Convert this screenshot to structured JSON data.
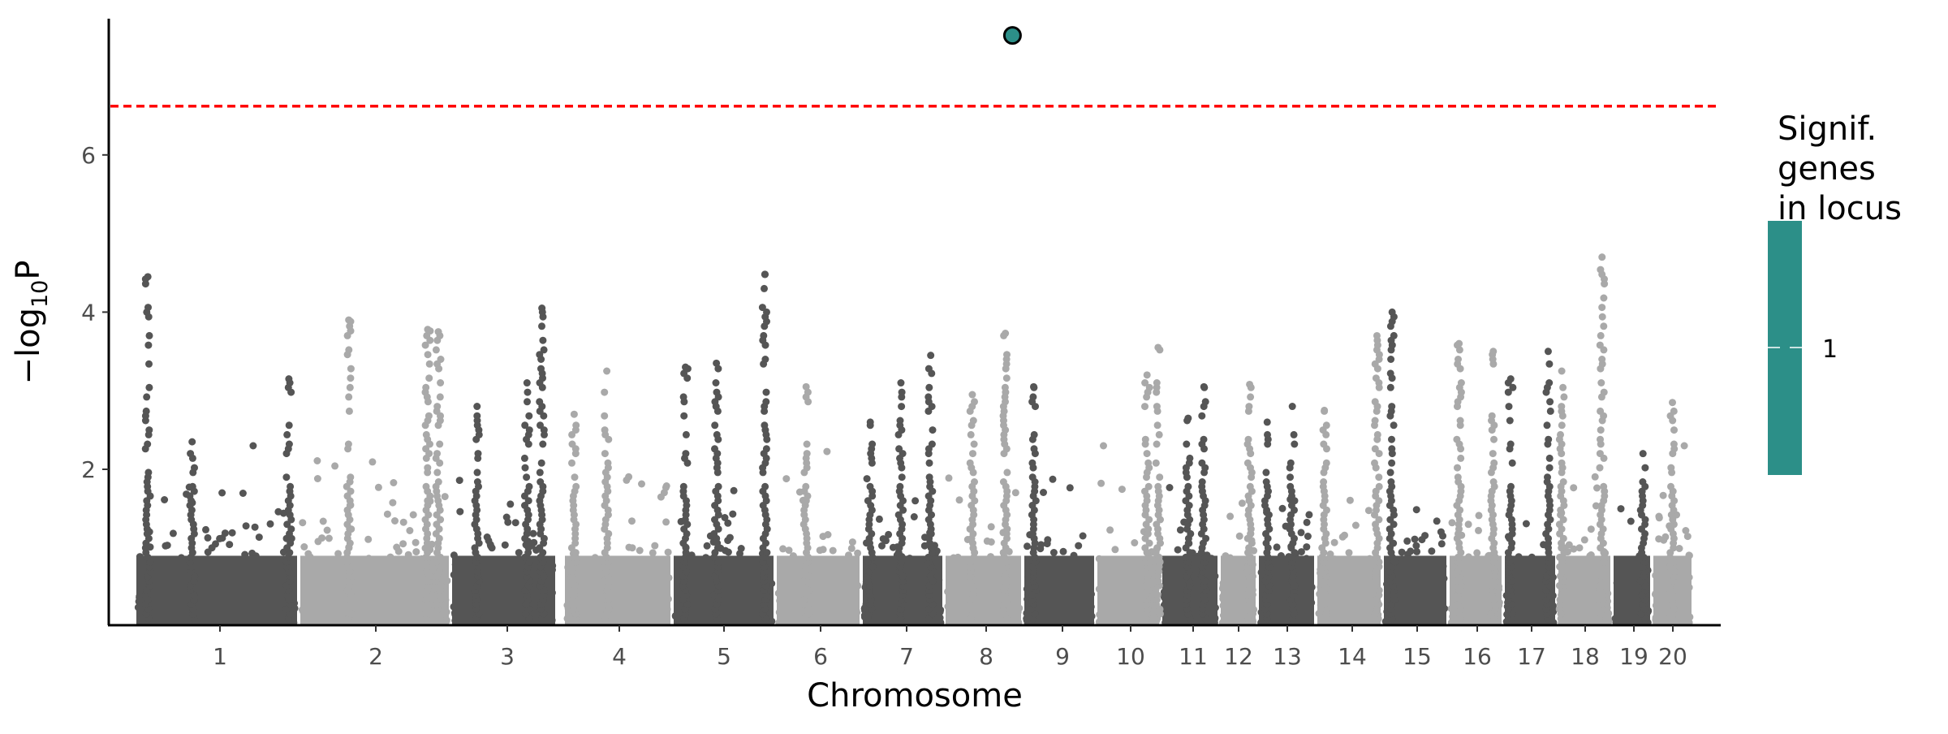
{
  "chart_data": {
    "type": "scatter",
    "subtype": "manhattan",
    "title": "",
    "xlabel": "Chromosome",
    "ylabel": "−log10P",
    "ylabel_main": "−log",
    "ylabel_sub": "10",
    "ylabel_tail": "P",
    "y_ticks": [
      2,
      4,
      6
    ],
    "ylim": [
      0.03,
      7.75
    ],
    "grid": false,
    "chromosomes": [
      "1",
      "2",
      "3",
      "4",
      "5",
      "6",
      "7",
      "8",
      "9",
      "10",
      "11",
      "12",
      "13",
      "14",
      "15",
      "16",
      "17",
      "18",
      "19",
      "20"
    ],
    "point_colors": [
      "#555555",
      "#a9a9a9"
    ],
    "significance_threshold": 6.62,
    "threshold_color": "#ff0000",
    "highlighted_point": {
      "chromosome": "8",
      "relative_position": 0.87,
      "neglog10p": 7.52,
      "signif_genes_in_locus": 1,
      "color": "#2c8f88"
    },
    "peaks": [
      {
        "chromosome": "1",
        "relative_position": 0.08,
        "neglog10p": 4.45
      },
      {
        "chromosome": "1",
        "relative_position": 0.94,
        "neglog10p": 3.15
      },
      {
        "chromosome": "1",
        "relative_position": 0.35,
        "neglog10p": 2.35
      },
      {
        "chromosome": "2",
        "relative_position": 0.33,
        "neglog10p": 3.9
      },
      {
        "chromosome": "2",
        "relative_position": 0.85,
        "neglog10p": 3.78
      },
      {
        "chromosome": "2",
        "relative_position": 0.92,
        "neglog10p": 3.75
      },
      {
        "chromosome": "3",
        "relative_position": 0.86,
        "neglog10p": 4.05
      },
      {
        "chromosome": "3",
        "relative_position": 0.72,
        "neglog10p": 3.1
      },
      {
        "chromosome": "3",
        "relative_position": 0.25,
        "neglog10p": 2.8
      },
      {
        "chromosome": "4",
        "relative_position": 0.4,
        "neglog10p": 3.25
      },
      {
        "chromosome": "4",
        "relative_position": 0.1,
        "neglog10p": 2.7
      },
      {
        "chromosome": "5",
        "relative_position": 0.13,
        "neglog10p": 3.3
      },
      {
        "chromosome": "5",
        "relative_position": 0.43,
        "neglog10p": 3.35
      },
      {
        "chromosome": "5",
        "relative_position": 0.9,
        "neglog10p": 4.48
      },
      {
        "chromosome": "6",
        "relative_position": 0.36,
        "neglog10p": 3.05
      },
      {
        "chromosome": "7",
        "relative_position": 0.11,
        "neglog10p": 2.6
      },
      {
        "chromosome": "7",
        "relative_position": 0.48,
        "neglog10p": 3.1
      },
      {
        "chromosome": "7",
        "relative_position": 0.84,
        "neglog10p": 3.45
      },
      {
        "chromosome": "8",
        "relative_position": 0.78,
        "neglog10p": 3.73
      },
      {
        "chromosome": "8",
        "relative_position": 0.36,
        "neglog10p": 2.95
      },
      {
        "chromosome": "9",
        "relative_position": 0.15,
        "neglog10p": 3.05
      },
      {
        "chromosome": "10",
        "relative_position": 0.96,
        "neglog10p": 3.55
      },
      {
        "chromosome": "10",
        "relative_position": 0.79,
        "neglog10p": 3.2
      },
      {
        "chromosome": "11",
        "relative_position": 0.74,
        "neglog10p": 3.05
      },
      {
        "chromosome": "11",
        "relative_position": 0.47,
        "neglog10p": 2.65
      },
      {
        "chromosome": "12",
        "relative_position": 0.8,
        "neglog10p": 3.08
      },
      {
        "chromosome": "13",
        "relative_position": 0.6,
        "neglog10p": 2.8
      },
      {
        "chromosome": "13",
        "relative_position": 0.17,
        "neglog10p": 2.6
      },
      {
        "chromosome": "14",
        "relative_position": 0.13,
        "neglog10p": 2.75
      },
      {
        "chromosome": "14",
        "relative_position": 0.92,
        "neglog10p": 3.7
      },
      {
        "chromosome": "15",
        "relative_position": 0.15,
        "neglog10p": 4.0
      },
      {
        "chromosome": "16",
        "relative_position": 0.2,
        "neglog10p": 3.6
      },
      {
        "chromosome": "16",
        "relative_position": 0.82,
        "neglog10p": 3.5
      },
      {
        "chromosome": "17",
        "relative_position": 0.14,
        "neglog10p": 3.15
      },
      {
        "chromosome": "17",
        "relative_position": 0.84,
        "neglog10p": 3.5
      },
      {
        "chromosome": "18",
        "relative_position": 0.82,
        "neglog10p": 4.7
      },
      {
        "chromosome": "18",
        "relative_position": 0.09,
        "neglog10p": 3.25
      },
      {
        "chromosome": "19",
        "relative_position": 0.78,
        "neglog10p": 2.2
      },
      {
        "chromosome": "20",
        "relative_position": 0.5,
        "neglog10p": 2.85
      }
    ],
    "legend": {
      "title_lines": [
        "Signif.",
        "genes",
        "in locus"
      ],
      "placement": "right",
      "color": "#2c8f88",
      "tick_label": "1"
    }
  }
}
